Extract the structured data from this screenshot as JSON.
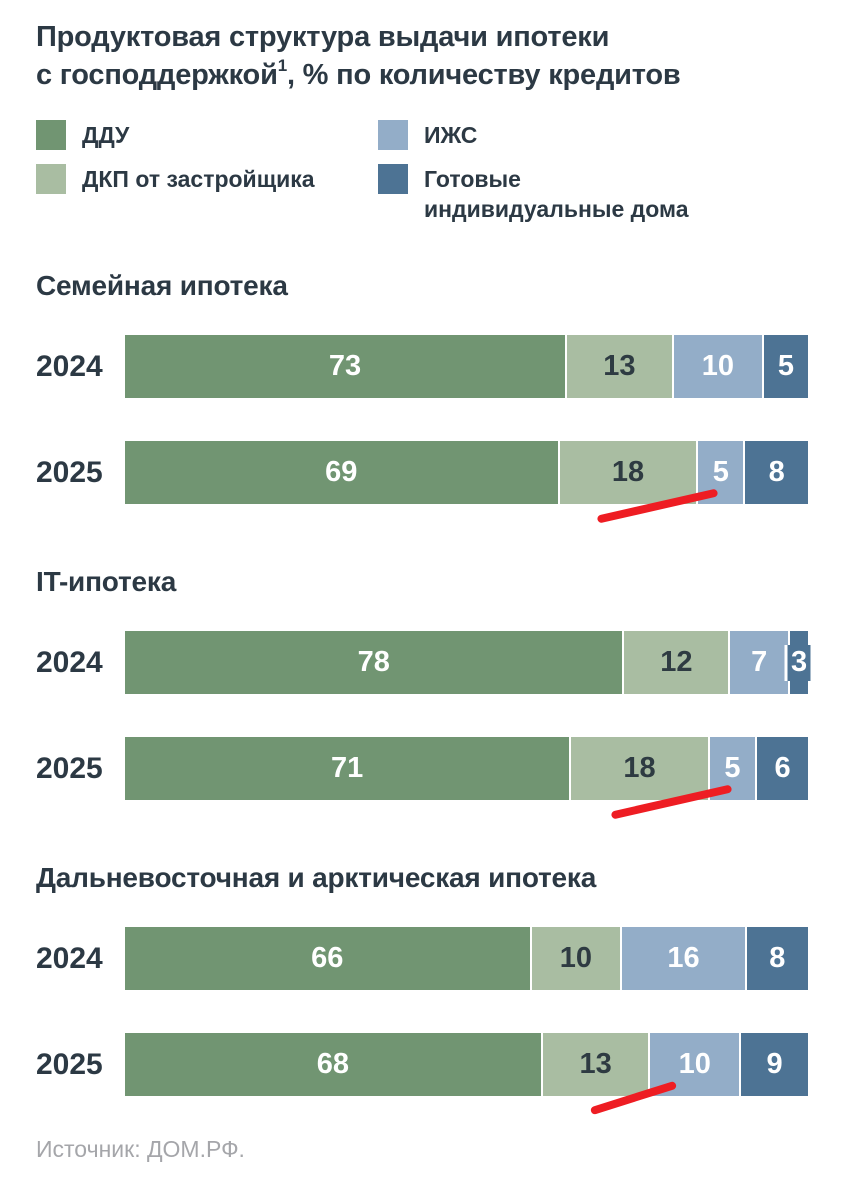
{
  "title": {
    "line1": "Продуктовая структура выдачи ипотеки",
    "line2_prefix": "с господдержкой",
    "footnote_mark": "1",
    "line2_suffix": ", % по количеству кредитов"
  },
  "legend": {
    "items": [
      {
        "label": "ДДУ",
        "color": "#719572"
      },
      {
        "label": "ДКП от застройщика",
        "color": "#a9bda2"
      },
      {
        "label": "ИЖС",
        "color": "#93adc8"
      },
      {
        "label": "Готовые индивидуальные дома",
        "color": "#4d7394"
      }
    ]
  },
  "colors": {
    "text": "#2c3944",
    "muted_text": "#a5a6aa",
    "annotation_red": "#ee1d23"
  },
  "chart_data": {
    "type": "bar",
    "orientation": "horizontal-stacked",
    "value_unit": "% по количеству кредитов",
    "segments": [
      "ДДУ",
      "ДКП от застройщика",
      "ИЖС",
      "Готовые индивидуальные дома"
    ],
    "segment_colors": [
      "#719572",
      "#a9bda2",
      "#93adc8",
      "#4d7394"
    ],
    "segment_label_colors": [
      "#ffffff",
      "#2e3b42",
      "#ffffff",
      "#ffffff"
    ],
    "groups": [
      {
        "title": "Семейная ипотека",
        "rows": [
          {
            "year": "2024",
            "values": [
              73,
              13,
              10,
              5
            ]
          },
          {
            "year": "2025",
            "values": [
              69,
              18,
              5,
              8
            ],
            "annotation": {
              "type": "red-underline",
              "segment": "ДКП от застройщика",
              "segment_index": 1
            }
          }
        ]
      },
      {
        "title": "IT-ипотека",
        "rows": [
          {
            "year": "2024",
            "values": [
              78,
              12,
              7,
              3
            ]
          },
          {
            "year": "2025",
            "values": [
              71,
              18,
              5,
              6
            ],
            "annotation": {
              "type": "red-underline",
              "segment": "ДКП от застройщика",
              "segment_index": 1
            }
          }
        ]
      },
      {
        "title": "Дальневосточная и арктическая ипотека",
        "rows": [
          {
            "year": "2024",
            "values": [
              66,
              10,
              16,
              8
            ]
          },
          {
            "year": "2025",
            "values": [
              68,
              13,
              10,
              9
            ],
            "annotation": {
              "type": "red-underline",
              "segment": "ДКП от застройщика",
              "segment_index": 1
            }
          }
        ]
      }
    ]
  },
  "source": "Источник: ДОМ.РФ."
}
